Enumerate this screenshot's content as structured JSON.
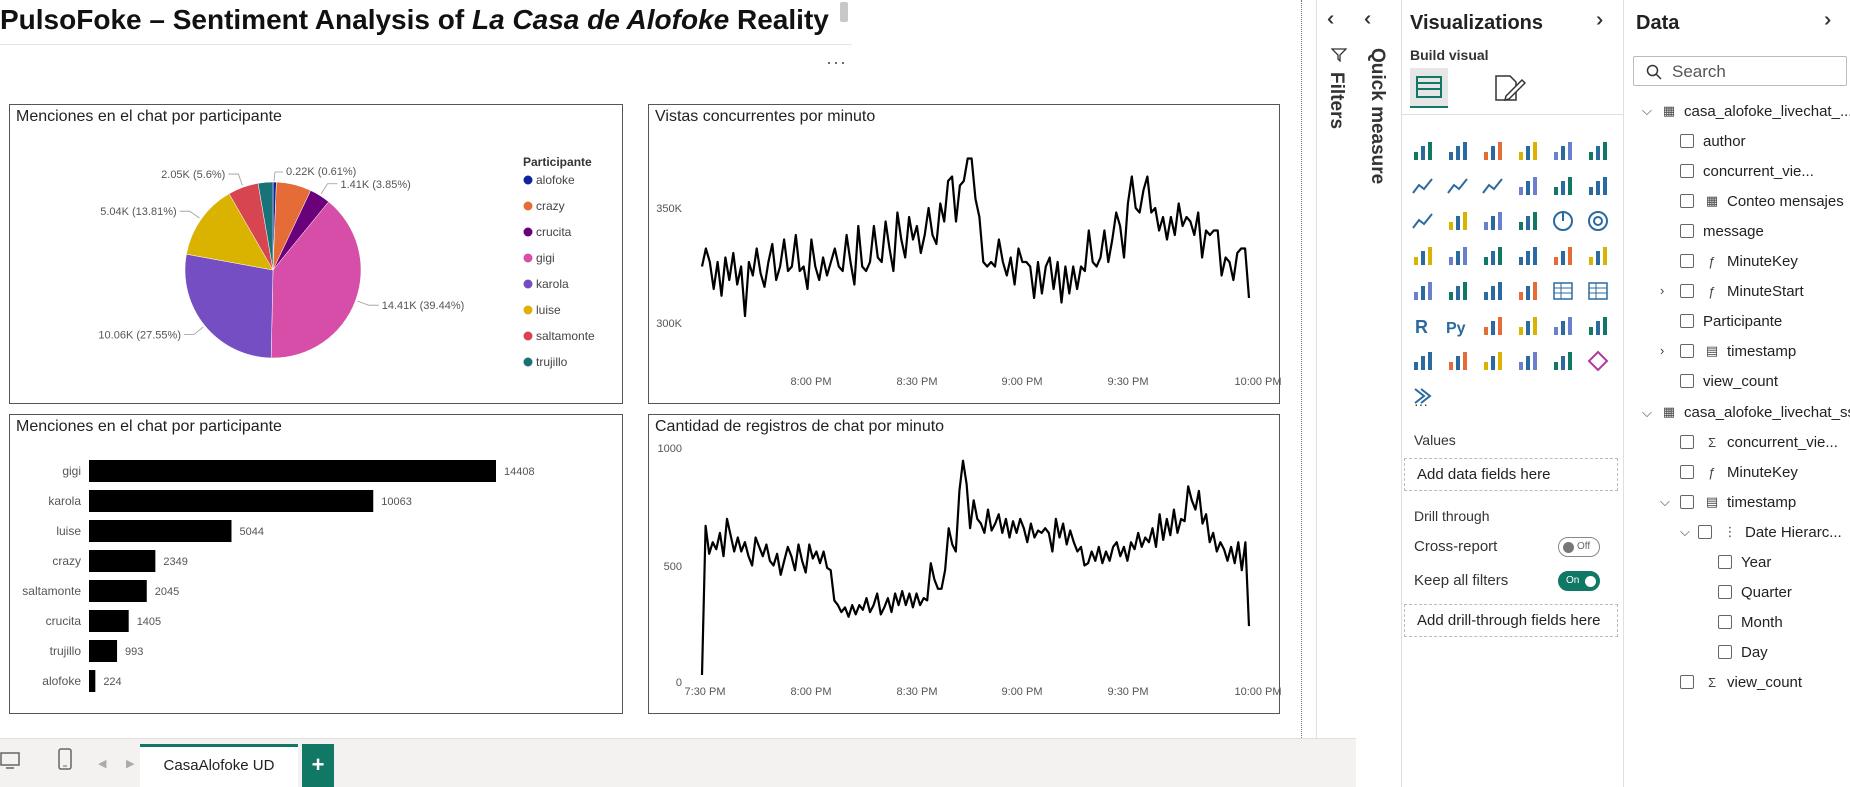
{
  "report": {
    "title_pre": "PulsoFoke – Sentiment Analysis of ",
    "title_italic": "La Casa de Alofoke",
    "title_post": " Reality",
    "more": "···"
  },
  "pages": {
    "tab": "CasaAlofoke UD",
    "add": "+"
  },
  "colors": {
    "accent": "#117865",
    "line": "#000000",
    "bar": "#000000"
  },
  "pie": {
    "title": "Menciones en el chat por participante",
    "legend_title": "Participante"
  },
  "bar": {
    "title": "Menciones en el chat por participante"
  },
  "line1": {
    "title": "Vistas concurrentes por minuto"
  },
  "line2": {
    "title": "Cantidad de registros de chat por minuto"
  },
  "chart_data": [
    {
      "type": "pie",
      "title": "Menciones en el chat por participante",
      "legend_title": "Participante",
      "legend_position": "right",
      "slices": [
        {
          "name": "alofoke",
          "value": 224,
          "label": "",
          "color": "#12239e"
        },
        {
          "name": "crazy",
          "value": 2349,
          "label": "",
          "color": "#e66c37"
        },
        {
          "name": "crucita",
          "value": 1405,
          "label": "1.41K (3.85%)",
          "color": "#6b007b"
        },
        {
          "name": "gigi",
          "value": 14408,
          "label": "14.41K (39.44%)",
          "color": "#d64ea7"
        },
        {
          "name": "karola",
          "value": 10063,
          "label": "10.06K (27.55%)",
          "color": "#744ec2"
        },
        {
          "name": "luise",
          "value": 5044,
          "label": "5.04K (13.81%)",
          "color": "#d9b300"
        },
        {
          "name": "saltamonte",
          "value": 2045,
          "label": "2.05K (5.6%)",
          "color": "#d64550"
        },
        {
          "name": "trujillo",
          "value": 993,
          "label": "",
          "color": "#197278"
        }
      ],
      "extra_labels": [
        "0.22K (0.61%)"
      ]
    },
    {
      "type": "bar",
      "orientation": "horizontal",
      "title": "Menciones en el chat por participante",
      "categories": [
        "gigi",
        "karola",
        "luise",
        "crazy",
        "saltamonte",
        "crucita",
        "trujillo",
        "alofoke"
      ],
      "values": [
        14408,
        10063,
        5044,
        2349,
        2045,
        1405,
        993,
        224
      ]
    },
    {
      "type": "line",
      "title": "Vistas concurrentes por minuto",
      "yticks": [
        "350K",
        "300K"
      ],
      "ylim": [
        292000,
        372000
      ],
      "xticks": [
        "8:00 PM",
        "8:30 PM",
        "9:00 PM",
        "9:30 PM",
        "10:00 PM"
      ],
      "xlim": [
        "7:30 PM",
        "10:05 PM"
      ],
      "x_start": "7:35 PM",
      "x_step_minutes": 1,
      "values": [
        318000,
        326000,
        320000,
        308000,
        320000,
        305000,
        322000,
        312000,
        324000,
        310000,
        318000,
        296000,
        320000,
        314000,
        326000,
        315000,
        309000,
        320000,
        328000,
        312000,
        318000,
        330000,
        316000,
        318000,
        332000,
        316000,
        318000,
        308000,
        330000,
        318000,
        312000,
        322000,
        314000,
        320000,
        326000,
        318000,
        316000,
        332000,
        320000,
        310000,
        336000,
        318000,
        316000,
        320000,
        336000,
        322000,
        320000,
        338000,
        326000,
        316000,
        342000,
        330000,
        322000,
        340000,
        330000,
        336000,
        324000,
        332000,
        344000,
        332000,
        328000,
        346000,
        338000,
        356000,
        358000,
        338000,
        354000,
        356000,
        366000,
        366000,
        348000,
        340000,
        320000,
        318000,
        320000,
        318000,
        330000,
        320000,
        314000,
        322000,
        310000,
        326000,
        320000,
        320000,
        318000,
        304000,
        320000,
        306000,
        318000,
        322000,
        308000,
        320000,
        302000,
        318000,
        306000,
        318000,
        308000,
        318000,
        316000,
        334000,
        320000,
        318000,
        322000,
        334000,
        320000,
        330000,
        342000,
        336000,
        322000,
        346000,
        358000,
        344000,
        342000,
        352000,
        358000,
        342000,
        344000,
        334000,
        340000,
        330000,
        340000,
        332000,
        346000,
        336000,
        340000,
        338000,
        332000,
        342000,
        322000,
        334000,
        332000,
        334000,
        334000,
        314000,
        322000,
        320000,
        312000,
        324000,
        326000,
        326000,
        304000
      ]
    },
    {
      "type": "line",
      "title": "Cantidad de registros de chat por minuto",
      "yticks": [
        "1000",
        "500",
        "0"
      ],
      "ylim": [
        0,
        1000
      ],
      "xticks": [
        "7:30 PM",
        "8:00 PM",
        "8:30 PM",
        "9:00 PM",
        "9:30 PM",
        "10:00 PM"
      ],
      "xlim": [
        "7:30 PM",
        "10:06 PM"
      ],
      "x_start": "7:30 PM",
      "x_step_minutes": 1,
      "values": [
        30,
        670,
        550,
        600,
        570,
        640,
        540,
        700,
        630,
        560,
        620,
        560,
        600,
        540,
        500,
        620,
        580,
        540,
        590,
        520,
        500,
        550,
        460,
        520,
        580,
        540,
        480,
        590,
        520,
        470,
        590,
        530,
        560,
        510,
        560,
        490,
        480,
        350,
        330,
        300,
        320,
        280,
        330,
        290,
        330,
        310,
        360,
        300,
        330,
        380,
        290,
        320,
        360,
        300,
        380,
        330,
        390,
        330,
        380,
        320,
        380,
        330,
        360,
        350,
        510,
        440,
        400,
        400,
        480,
        660,
        590,
        560,
        820,
        950,
        850,
        660,
        780,
        700,
        680,
        640,
        740,
        650,
        680,
        720,
        640,
        700,
        620,
        690,
        640,
        700,
        660,
        600,
        680,
        620,
        650,
        640,
        660,
        640,
        560,
        700,
        620,
        680,
        590,
        650,
        600,
        560,
        580,
        500,
        510,
        560,
        520,
        580,
        510,
        560,
        520,
        580,
        600,
        540,
        580,
        520,
        600,
        570,
        640,
        580,
        620,
        600,
        660,
        580,
        720,
        610,
        700,
        630,
        740,
        640,
        700,
        690,
        840,
        780,
        740,
        820,
        680,
        720,
        600,
        640,
        560,
        600,
        570,
        520,
        580,
        510,
        600,
        480,
        600,
        240
      ]
    }
  ],
  "filters": {
    "label": "Filters"
  },
  "quick_measure": {
    "label": "Quick measure"
  },
  "visualizations": {
    "title": "Visualizations",
    "build_visual": "Build visual",
    "values_label": "Values",
    "add_data_fields": "Add data fields here",
    "drill_through": "Drill through",
    "cross_report": "Cross-report",
    "cross_report_state": "Off",
    "keep_all_filters": "Keep all filters",
    "keep_all_filters_state": "On",
    "add_drill_fields": "Add drill-through fields here",
    "more": "···"
  },
  "data_pane": {
    "title": "Data",
    "search_placeholder": "Search",
    "table1": {
      "name": "casa_alofoke_livechat_...",
      "fields": [
        {
          "name": "author",
          "icon": ""
        },
        {
          "name": "concurrent_vie...",
          "icon": ""
        },
        {
          "name": "Conteo mensajes",
          "icon": "calc-table-icon"
        },
        {
          "name": "message",
          "icon": ""
        },
        {
          "name": "MinuteKey",
          "icon": "calc-column-icon"
        },
        {
          "name": "MinuteStart",
          "icon": "calc-column-icon"
        },
        {
          "name": "Participante",
          "icon": ""
        },
        {
          "name": "timestamp",
          "icon": "calendar-icon"
        },
        {
          "name": "view_count",
          "icon": ""
        }
      ]
    },
    "table2": {
      "name": "casa_alofoke_livechat_ss",
      "fields": [
        {
          "name": "concurrent_vie...",
          "icon": "sigma-icon"
        },
        {
          "name": "MinuteKey",
          "icon": "calc-column-icon"
        },
        {
          "name": "timestamp",
          "icon": "calendar-icon"
        },
        {
          "name": "Date Hierarc...",
          "icon": "hierarchy-icon"
        },
        {
          "name": "Year",
          "icon": ""
        },
        {
          "name": "Quarter",
          "icon": ""
        },
        {
          "name": "Month",
          "icon": ""
        },
        {
          "name": "Day",
          "icon": ""
        },
        {
          "name": "view_count",
          "icon": "sigma-icon"
        }
      ]
    }
  }
}
